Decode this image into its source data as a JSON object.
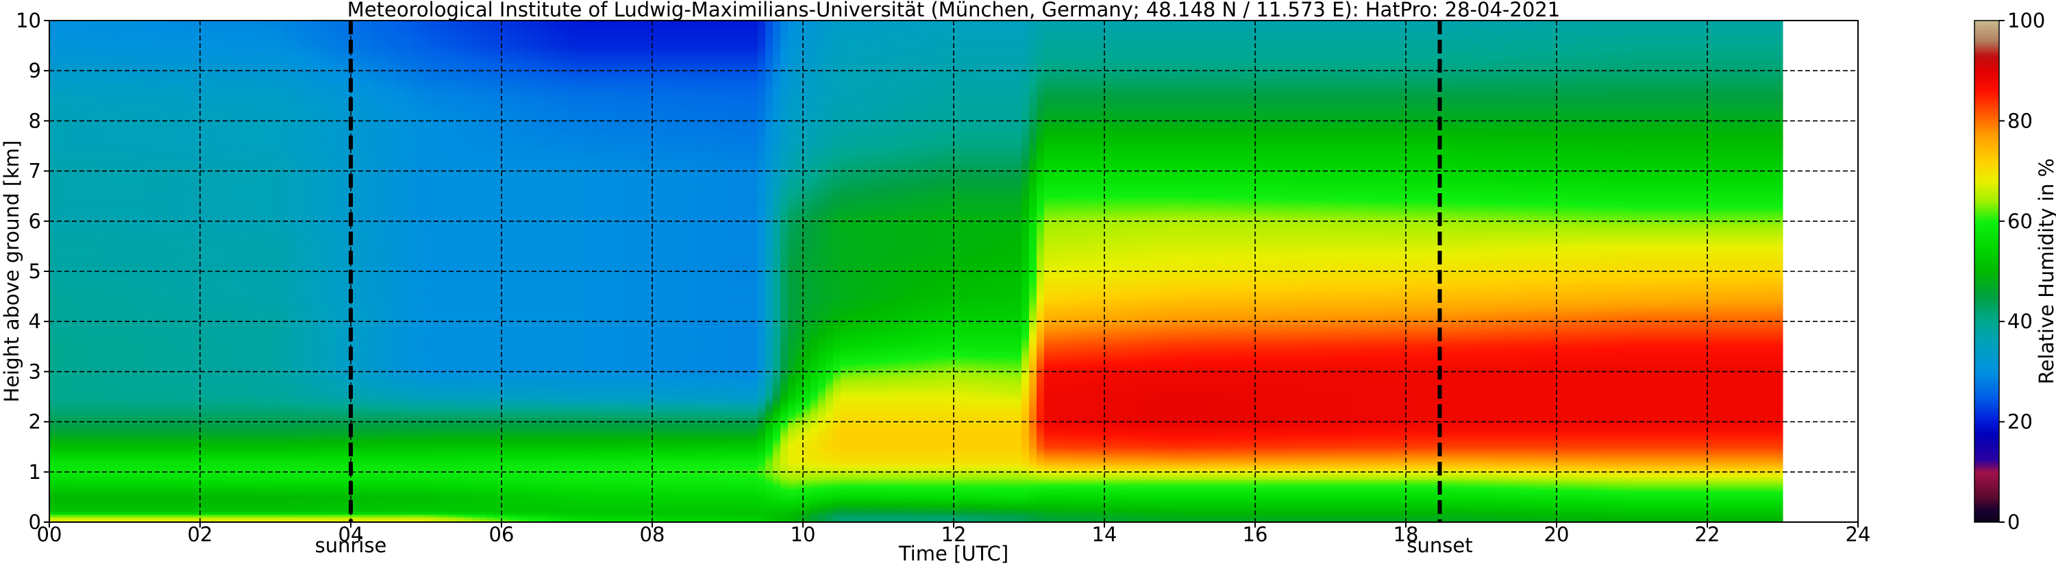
{
  "chart_data": {
    "type": "heatmap",
    "title": "Meteorological Institute of Ludwig-Maximilians-Universität (München, Germany; 48.148 N / 11.573 E):    HatPro: 28-04-2021",
    "xlabel": "Time [UTC]",
    "ylabel": "Height above ground [km]",
    "xlim": [
      0,
      24
    ],
    "ylim": [
      0,
      10
    ],
    "x_ticks": [
      0,
      2,
      4,
      6,
      8,
      10,
      12,
      14,
      16,
      18,
      20,
      22,
      24
    ],
    "x_tick_labels": [
      "00",
      "02",
      "04",
      "06",
      "08",
      "10",
      "12",
      "14",
      "16",
      "18",
      "20",
      "22",
      "24"
    ],
    "y_ticks": [
      0,
      1,
      2,
      3,
      4,
      5,
      6,
      7,
      8,
      9,
      10
    ],
    "y_tick_labels": [
      "0",
      "1",
      "2",
      "3",
      "4",
      "5",
      "6",
      "7",
      "8",
      "9",
      "10"
    ],
    "grid": true,
    "data_end_hour": 23.0,
    "colorbar": {
      "label": "Relative Humidity in %",
      "range": [
        0,
        100
      ],
      "ticks": [
        0,
        20,
        40,
        60,
        80,
        100
      ],
      "stops": [
        {
          "v": 0,
          "color": "#0b0018"
        },
        {
          "v": 2.5,
          "color": "#1a0030"
        },
        {
          "v": 5,
          "color": "#5a0a2e"
        },
        {
          "v": 10,
          "color": "#a0104a"
        },
        {
          "v": 12.5,
          "color": "#2a00a0"
        },
        {
          "v": 17.5,
          "color": "#0000b8"
        },
        {
          "v": 20,
          "color": "#0018d8"
        },
        {
          "v": 25,
          "color": "#0060e8"
        },
        {
          "v": 30,
          "color": "#0090e0"
        },
        {
          "v": 35,
          "color": "#00a0c0"
        },
        {
          "v": 40,
          "color": "#00a890"
        },
        {
          "v": 45,
          "color": "#00a040"
        },
        {
          "v": 50,
          "color": "#00b800"
        },
        {
          "v": 55,
          "color": "#00d800"
        },
        {
          "v": 60,
          "color": "#10f010"
        },
        {
          "v": 64,
          "color": "#a0f000"
        },
        {
          "v": 68,
          "color": "#e8f000"
        },
        {
          "v": 72,
          "color": "#ffd000"
        },
        {
          "v": 77,
          "color": "#ffa000"
        },
        {
          "v": 82,
          "color": "#ff5000"
        },
        {
          "v": 86,
          "color": "#ff1000"
        },
        {
          "v": 90,
          "color": "#e00000"
        },
        {
          "v": 93,
          "color": "#c01010"
        },
        {
          "v": 96,
          "color": "#b08060"
        },
        {
          "v": 100,
          "color": "#c8b890"
        }
      ]
    },
    "events": [
      {
        "name": "sunrise",
        "hour": 4.0
      },
      {
        "name": "sunset",
        "hour": 18.45
      }
    ],
    "heights_km": [
      0.0,
      0.1,
      0.2,
      0.5,
      0.8,
      1.0,
      1.2,
      1.5,
      1.8,
      2.0,
      2.2,
      2.5,
      3.0,
      3.5,
      4.0,
      4.5,
      5.0,
      5.5,
      6.0,
      6.5,
      7.0,
      7.5,
      8.0,
      8.5,
      9.0,
      9.5,
      10.0
    ],
    "profiles": [
      {
        "hour": 0.0,
        "rh": [
          68,
          66,
          52,
          50,
          55,
          58,
          57,
          51,
          46,
          44,
          42,
          40,
          40,
          40,
          39,
          39,
          38,
          38,
          37,
          37,
          37,
          36,
          36,
          35,
          33,
          31,
          30
        ]
      },
      {
        "hour": 3.0,
        "rh": [
          68,
          66,
          52,
          50,
          56,
          59,
          57,
          51,
          46,
          44,
          42,
          39,
          38,
          38,
          38,
          37,
          37,
          37,
          36,
          36,
          36,
          35,
          35,
          34,
          32,
          30,
          29
        ]
      },
      {
        "hour": 5.0,
        "rh": [
          68,
          66,
          53,
          51,
          56,
          59,
          57,
          52,
          47,
          44,
          41,
          35,
          30,
          30,
          30,
          30,
          30,
          30,
          30,
          30,
          30,
          30,
          30,
          29,
          27,
          25,
          24
        ]
      },
      {
        "hour": 7.0,
        "rh": [
          58,
          55,
          52,
          54,
          58,
          60,
          58,
          52,
          47,
          44,
          41,
          34,
          30,
          30,
          30,
          30,
          30,
          30,
          30,
          30,
          30,
          29,
          28,
          27,
          24,
          21,
          20
        ]
      },
      {
        "hour": 9.4,
        "rh": [
          55,
          53,
          52,
          55,
          59,
          61,
          59,
          53,
          47,
          44,
          40,
          33,
          29,
          29,
          29,
          29,
          29,
          29,
          29,
          29,
          29,
          28,
          27,
          26,
          24,
          21,
          20
        ]
      },
      {
        "hour": 9.8,
        "rh": [
          52,
          50,
          52,
          58,
          63,
          66,
          68,
          68,
          65,
          62,
          58,
          52,
          47,
          46,
          45,
          45,
          45,
          44,
          43,
          40,
          37,
          35,
          34,
          33,
          32,
          31,
          30
        ]
      },
      {
        "hour": 10.5,
        "rh": [
          42,
          42,
          45,
          55,
          62,
          66,
          70,
          72,
          72,
          71,
          70,
          68,
          62,
          55,
          50,
          48,
          48,
          48,
          48,
          45,
          42,
          39,
          37,
          36,
          36,
          35,
          34
        ]
      },
      {
        "hour": 12.0,
        "rh": [
          42,
          42,
          46,
          56,
          62,
          66,
          70,
          72,
          72,
          71,
          70,
          68,
          64,
          58,
          54,
          51,
          50,
          49,
          49,
          47,
          44,
          41,
          39,
          38,
          37,
          36,
          35
        ]
      },
      {
        "hour": 12.9,
        "rh": [
          44,
          44,
          47,
          57,
          62,
          66,
          70,
          72,
          72,
          71,
          70,
          67,
          63,
          58,
          54,
          52,
          51,
          50,
          49,
          47,
          44,
          41,
          39,
          38,
          37,
          36,
          35
        ]
      },
      {
        "hour": 13.2,
        "rh": [
          46,
          46,
          48,
          55,
          62,
          68,
          76,
          83,
          86,
          88,
          88,
          88,
          87,
          82,
          76,
          71,
          68,
          66,
          64,
          60,
          56,
          52,
          48,
          45,
          41,
          39,
          37
        ]
      },
      {
        "hour": 15.0,
        "rh": [
          48,
          48,
          50,
          56,
          62,
          68,
          77,
          84,
          87,
          89,
          89,
          89,
          88,
          84,
          78,
          73,
          69,
          67,
          65,
          60,
          56,
          52,
          48,
          45,
          41,
          39,
          37
        ]
      },
      {
        "hour": 18.5,
        "rh": [
          48,
          48,
          50,
          56,
          62,
          68,
          76,
          83,
          86,
          88,
          88,
          88,
          88,
          85,
          79,
          74,
          70,
          67,
          64,
          59,
          55,
          52,
          48,
          45,
          41,
          39,
          37
        ]
      },
      {
        "hour": 21.0,
        "rh": [
          50,
          50,
          52,
          58,
          64,
          70,
          77,
          83,
          86,
          88,
          88,
          88,
          88,
          86,
          81,
          75,
          71,
          68,
          63,
          58,
          54,
          51,
          48,
          45,
          42,
          40,
          38
        ]
      },
      {
        "hour": 23.0,
        "rh": [
          50,
          50,
          52,
          58,
          64,
          70,
          77,
          83,
          86,
          88,
          88,
          88,
          88,
          86,
          81,
          76,
          71,
          68,
          63,
          58,
          54,
          51,
          48,
          45,
          42,
          40,
          38
        ]
      }
    ]
  }
}
